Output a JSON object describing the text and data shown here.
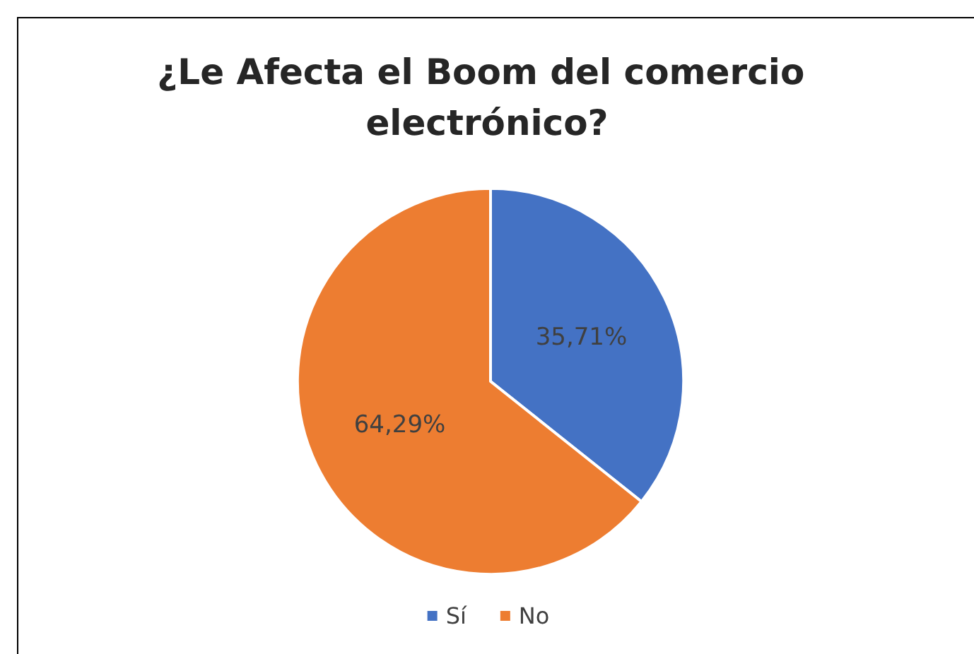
{
  "chart_data": {
    "type": "pie",
    "title": "¿Le Afecta el Boom del comercio electrónico?",
    "categories": [
      "Sí",
      "No"
    ],
    "values": [
      35.71,
      64.29
    ],
    "colors": [
      "#4472c4",
      "#ed7d31"
    ],
    "value_labels": [
      "35,71%",
      "64,29%"
    ],
    "legend": "bottom"
  }
}
